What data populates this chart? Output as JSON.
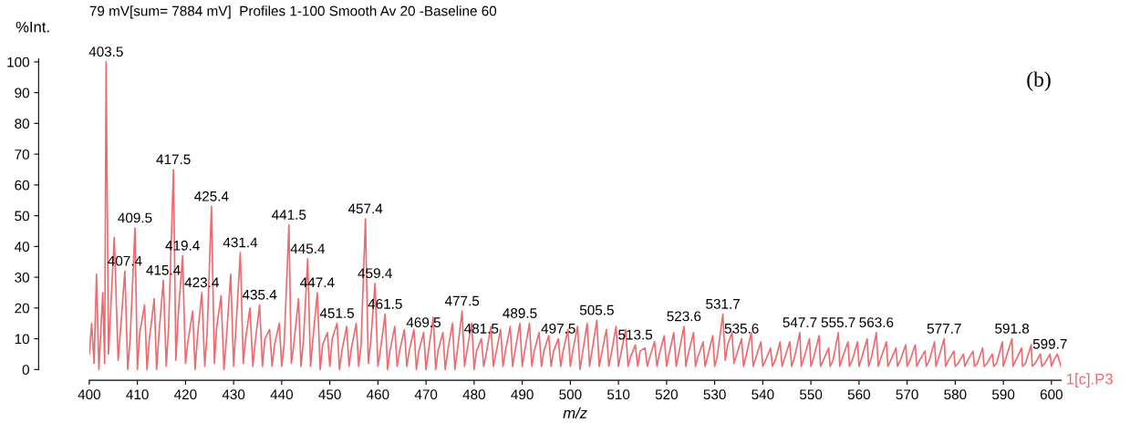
{
  "chart_data": {
    "type": "line",
    "title": "79 mV[sum= 7884 mV]  Profiles 1-100 Smooth Av 20 -Baseline 60",
    "xlabel": "m/z",
    "ylabel": "%Int.",
    "xlim": [
      400,
      602
    ],
    "xticks": [
      400,
      410,
      420,
      430,
      440,
      450,
      460,
      470,
      480,
      490,
      500,
      510,
      520,
      530,
      540,
      550,
      560,
      570,
      580,
      590,
      600
    ],
    "ylim": [
      -3.5,
      101
    ],
    "yticks": [
      0,
      10,
      20,
      30,
      40,
      50,
      60,
      70,
      80,
      90,
      100
    ],
    "grid": false,
    "legend": false,
    "marker": "none",
    "line_style": "solid",
    "series": [
      {
        "name": "1[c].P3",
        "color": "#ef6a6e",
        "x": [
          400,
          400.5,
          401,
          401.5,
          402,
          402.8,
          403.2,
          403.5,
          404,
          405.2,
          406,
          406.5,
          407.4,
          408,
          408.5,
          409.5,
          410,
          410.5,
          411.5,
          412,
          412.5,
          413.5,
          414,
          414.5,
          415.4,
          416,
          416.5,
          417.5,
          418,
          418.5,
          419.4,
          420,
          420.5,
          421.5,
          422,
          422.5,
          423.4,
          424,
          424.5,
          425.4,
          426,
          426.5,
          427.4,
          428,
          428.5,
          429.4,
          430,
          430.5,
          431.4,
          432,
          432.5,
          433.4,
          434,
          434.5,
          435.4,
          436,
          436.5,
          437.5,
          438,
          438.5,
          439.5,
          440,
          440.5,
          441.5,
          442,
          442.5,
          443.5,
          444,
          444.5,
          445.4,
          446,
          446.5,
          447.4,
          448,
          448.5,
          449.5,
          450,
          450.5,
          451.5,
          452,
          452.5,
          453.5,
          454,
          454.5,
          455.5,
          456,
          456.5,
          457.4,
          458,
          458.5,
          459.4,
          460,
          460.5,
          461.5,
          462,
          462.5,
          463.5,
          464,
          464.5,
          465.5,
          466,
          466.5,
          467.5,
          468,
          468.5,
          469.5,
          470,
          470.5,
          471.5,
          472,
          472.5,
          473.5,
          474,
          474.5,
          475.5,
          476,
          476.5,
          477.5,
          478,
          478.5,
          479.5,
          480,
          480.5,
          481.5,
          482,
          482.5,
          483.5,
          484,
          484.5,
          485.5,
          486,
          486.5,
          487.5,
          488,
          488.5,
          489.5,
          490,
          490.5,
          491.5,
          492,
          492.5,
          493.5,
          494,
          494.5,
          495.5,
          496,
          496.5,
          497.5,
          498,
          498.5,
          499.5,
          500,
          500.5,
          501.5,
          502,
          502.5,
          503.5,
          504,
          504.5,
          505.5,
          506,
          506.5,
          507.5,
          508,
          508.5,
          509.5,
          510,
          510.5,
          511.5,
          512,
          512.5,
          513.5,
          514,
          514.5,
          515.5,
          516,
          516.5,
          517.5,
          518,
          518.5,
          519.5,
          520,
          520.5,
          521.5,
          522,
          522.5,
          523.6,
          524,
          524.5,
          525.6,
          526,
          526.5,
          527.6,
          528,
          528.5,
          529.6,
          530,
          530.5,
          531.7,
          532.2,
          532.7,
          533.6,
          534,
          534.6,
          535.6,
          536,
          536.6,
          537.6,
          538,
          538.6,
          539.6,
          540,
          540.6,
          541.6,
          542,
          542.6,
          543.6,
          544,
          544.6,
          545.6,
          546,
          546.6,
          547.7,
          548,
          548.6,
          549.7,
          550,
          550.6,
          551.7,
          552,
          552.6,
          553.7,
          554,
          554.6,
          555.7,
          556,
          556.6,
          557.7,
          558,
          558.6,
          559.7,
          560,
          560.6,
          561.7,
          562,
          562.6,
          563.6,
          564,
          564.6,
          565.7,
          566,
          566.6,
          567.7,
          568,
          568.6,
          569.7,
          570,
          570.6,
          571.7,
          572,
          572.6,
          573.7,
          574,
          574.6,
          575.7,
          576,
          576.6,
          577.7,
          578,
          578.6,
          579.7,
          580,
          580.6,
          581.7,
          582,
          582.6,
          583.7,
          584,
          584.6,
          585.7,
          586,
          586.6,
          587.7,
          588,
          588.6,
          589.8,
          590,
          590.6,
          591.8,
          592,
          592.6,
          593.8,
          594,
          594.6,
          595.8,
          596,
          596.6,
          597.7,
          598,
          598.6,
          599.7,
          600,
          600.5,
          601.2,
          602
        ],
        "values": [
          5,
          15,
          2,
          31,
          0,
          25,
          2,
          100,
          5,
          43,
          3,
          13,
          32,
          0,
          10,
          46,
          0,
          12,
          21,
          0,
          10,
          23,
          0,
          12,
          29,
          1,
          14,
          65,
          3,
          18,
          37,
          2,
          9,
          19,
          0,
          11,
          25,
          1,
          12,
          53,
          2,
          14,
          24,
          0,
          10,
          31,
          1,
          14,
          38,
          2,
          10,
          20,
          1,
          9,
          21,
          1,
          10,
          13,
          1,
          8,
          15,
          1,
          8,
          47,
          2,
          8,
          23,
          1,
          9,
          36,
          1,
          10,
          25,
          0,
          8,
          12,
          1,
          10,
          15,
          0,
          6,
          14,
          1,
          7,
          15,
          1,
          8,
          49,
          2,
          9,
          28,
          1,
          6,
          18,
          0,
          6,
          14,
          1,
          6,
          13,
          1,
          6,
          13,
          0,
          6,
          12,
          0,
          6,
          17,
          0,
          6,
          12,
          0,
          6,
          15,
          0,
          6,
          19,
          1,
          6,
          15,
          0,
          6,
          10,
          1,
          5,
          14,
          1,
          5,
          13,
          1,
          6,
          14,
          1,
          6,
          15,
          1,
          6,
          15,
          1,
          6,
          12,
          1,
          6,
          11,
          1,
          6,
          10,
          1,
          6,
          13,
          1,
          6,
          14,
          0,
          5,
          15,
          1,
          6,
          16,
          1,
          5,
          13,
          1,
          5,
          14,
          1,
          5,
          13,
          1,
          4,
          8,
          1,
          6,
          7,
          1,
          4,
          9,
          1,
          5,
          11,
          1,
          5,
          12,
          1,
          5,
          14,
          1,
          5,
          12,
          1,
          4,
          9,
          1,
          4,
          11,
          1,
          4,
          18,
          3,
          8,
          12,
          2,
          5,
          10,
          1,
          5,
          12,
          1,
          4,
          9,
          1,
          3,
          7,
          1,
          3,
          9,
          1,
          4,
          9,
          1,
          4,
          12,
          1,
          4,
          10,
          1,
          4,
          11,
          1,
          3,
          7,
          1,
          3,
          12,
          1,
          4,
          9,
          1,
          3,
          9,
          1,
          4,
          10,
          1,
          4,
          12,
          1,
          4,
          9,
          1,
          3,
          7,
          1,
          3,
          8,
          1,
          3,
          8,
          1,
          3,
          6,
          1,
          3,
          9,
          1,
          4,
          10,
          1,
          3,
          6,
          1,
          2,
          5,
          1,
          3,
          6,
          1,
          2,
          7,
          1,
          2,
          5,
          1,
          2,
          9,
          1,
          4,
          10,
          1,
          3,
          7,
          1,
          2,
          8,
          1,
          2,
          5,
          1,
          2,
          5,
          1,
          3,
          5,
          1
        ]
      }
    ],
    "annotations": [
      {
        "text": "403.5",
        "x": 403.5,
        "y": 100
      },
      {
        "text": "407.4",
        "x": 407.4,
        "y": 32
      },
      {
        "text": "409.5",
        "x": 409.5,
        "y": 46
      },
      {
        "text": "415.4",
        "x": 415.4,
        "y": 29
      },
      {
        "text": "417.5",
        "x": 417.5,
        "y": 65
      },
      {
        "text": "419.4",
        "x": 419.4,
        "y": 37
      },
      {
        "text": "423.4",
        "x": 423.4,
        "y": 25
      },
      {
        "text": "425.4",
        "x": 425.4,
        "y": 53
      },
      {
        "text": "431.4",
        "x": 431.4,
        "y": 38
      },
      {
        "text": "435.4",
        "x": 435.4,
        "y": 21
      },
      {
        "text": "441.5",
        "x": 441.5,
        "y": 47
      },
      {
        "text": "445.4",
        "x": 445.4,
        "y": 36
      },
      {
        "text": "447.4",
        "x": 447.4,
        "y": 25
      },
      {
        "text": "451.5",
        "x": 451.5,
        "y": 15
      },
      {
        "text": "457.4",
        "x": 457.4,
        "y": 49
      },
      {
        "text": "459.4",
        "x": 459.4,
        "y": 28
      },
      {
        "text": "461.5",
        "x": 461.5,
        "y": 18
      },
      {
        "text": "469.5",
        "x": 469.5,
        "y": 12
      },
      {
        "text": "477.5",
        "x": 477.5,
        "y": 19
      },
      {
        "text": "481.5",
        "x": 481.5,
        "y": 10
      },
      {
        "text": "489.5",
        "x": 489.5,
        "y": 15
      },
      {
        "text": "497.5",
        "x": 497.5,
        "y": 10
      },
      {
        "text": "505.5",
        "x": 505.5,
        "y": 16
      },
      {
        "text": "513.5",
        "x": 513.5,
        "y": 8
      },
      {
        "text": "523.6",
        "x": 523.6,
        "y": 14
      },
      {
        "text": "531.7",
        "x": 531.7,
        "y": 18
      },
      {
        "text": "535.6",
        "x": 535.6,
        "y": 10
      },
      {
        "text": "547.7",
        "x": 547.7,
        "y": 12
      },
      {
        "text": "555.7",
        "x": 555.7,
        "y": 12
      },
      {
        "text": "563.6",
        "x": 563.6,
        "y": 12
      },
      {
        "text": "577.7",
        "x": 577.7,
        "y": 10
      },
      {
        "text": "591.8",
        "x": 591.8,
        "y": 10
      },
      {
        "text": "599.7",
        "x": 599.7,
        "y": 5
      },
      "(b)"
    ]
  }
}
